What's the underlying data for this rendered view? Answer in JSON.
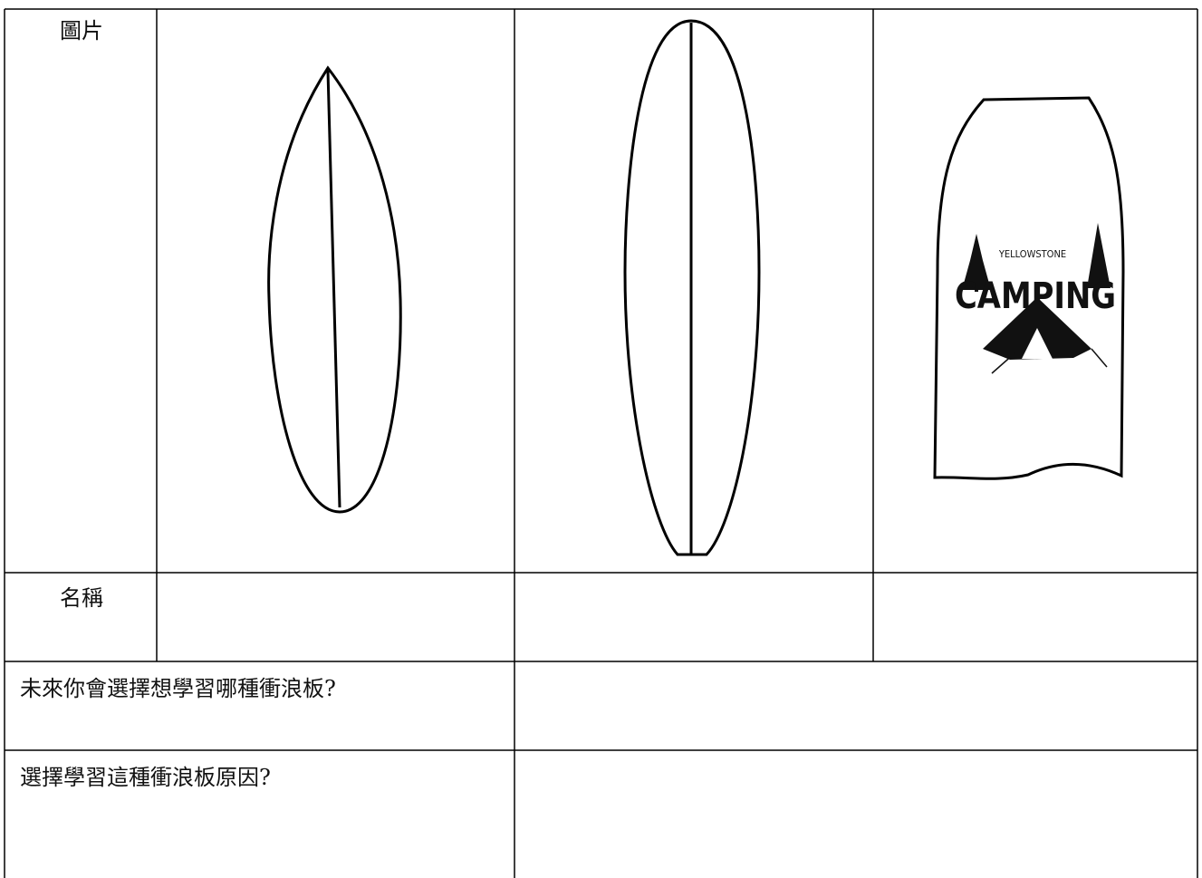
{
  "table": {
    "rows": [
      [
        "圖片"
      ],
      [
        "名稱"
      ],
      [
        "未來你會選擇想學習哪種衝浪板?"
      ],
      [
        "選擇學習這種衝浪板原因?"
      ]
    ]
  },
  "logo": {
    "line1": "YELLOWSTONE",
    "line2": "CAMPING"
  }
}
